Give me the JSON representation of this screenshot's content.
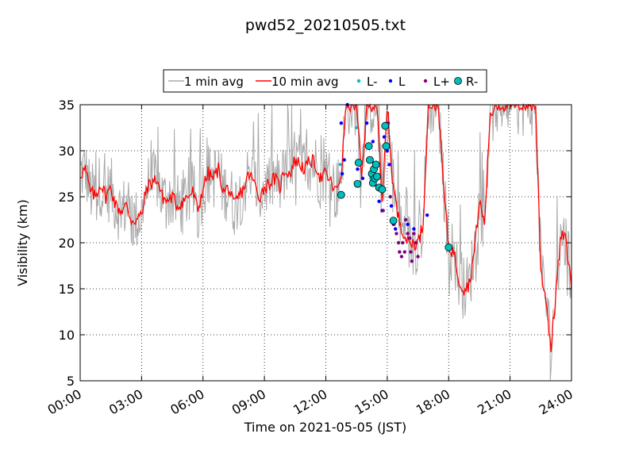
{
  "chart_data": {
    "type": "line",
    "title": "pwd52_20210505.txt",
    "xlabel": "Time on 2021-05-05 (JST)",
    "ylabel": "Visibility (km)",
    "xlim": [
      0,
      24
    ],
    "ylim": [
      5,
      35
    ],
    "x_tick_labels": [
      "00:00",
      "03:00",
      "06:00",
      "09:00",
      "12:00",
      "15:00",
      "18:00",
      "21:00",
      "24:00"
    ],
    "y_ticks": [
      5,
      10,
      15,
      20,
      25,
      30,
      35
    ],
    "grid": true,
    "legend_position": "top-center",
    "legend": [
      {
        "label": "1 min avg",
        "type": "line",
        "color": "#a9a9a9"
      },
      {
        "label": "10 min avg",
        "type": "line",
        "color": "#ff0000"
      },
      {
        "label": "L-",
        "type": "marker",
        "color": "#00bfbf",
        "size": "small"
      },
      {
        "label": "L",
        "type": "marker",
        "color": "#0000ff",
        "size": "small"
      },
      {
        "label": "L+",
        "type": "marker",
        "color": "#800080",
        "size": "small"
      },
      {
        "label": "R-",
        "type": "marker",
        "color": "#00bfbf",
        "size": "large"
      }
    ],
    "series": [
      {
        "name": "10 min avg",
        "color": "#ff0000",
        "x": [
          0,
          0.25,
          0.5,
          0.75,
          1,
          1.25,
          1.5,
          1.75,
          2,
          2.25,
          2.5,
          2.75,
          3,
          3.25,
          3.5,
          3.75,
          4,
          4.25,
          4.5,
          4.75,
          5,
          5.25,
          5.5,
          5.75,
          6,
          6.25,
          6.5,
          6.75,
          7,
          7.25,
          7.5,
          7.75,
          8,
          8.25,
          8.5,
          8.75,
          9,
          9.25,
          9.5,
          9.75,
          10,
          10.25,
          10.5,
          10.75,
          11,
          11.25,
          11.5,
          11.75,
          12,
          12.25,
          12.5,
          12.75,
          13,
          13.25,
          13.5,
          13.75,
          14,
          14.25,
          14.5,
          14.75,
          15,
          15.25,
          15.5,
          15.75,
          16,
          16.25,
          16.5,
          16.75,
          17,
          17.25,
          17.5,
          17.75,
          18,
          18.25,
          18.5,
          18.75,
          19,
          19.25,
          19.5,
          19.75,
          20,
          20.25,
          20.5,
          20.75,
          21,
          21.25,
          21.5,
          21.75,
          22,
          22.25,
          22.5,
          22.75,
          23,
          23.25,
          23.5,
          23.75,
          24
        ],
        "y": [
          27.5,
          28,
          25.5,
          25,
          26.5,
          25,
          26,
          24,
          23.5,
          24,
          22.5,
          22.5,
          23,
          26,
          26.5,
          27,
          25,
          24.5,
          25,
          24,
          24.5,
          25,
          25.5,
          23.5,
          26,
          27.5,
          27,
          28,
          25.5,
          26,
          24,
          25,
          26,
          27.5,
          26.5,
          25,
          26,
          26.5,
          27,
          26,
          28,
          27.5,
          29,
          28.5,
          28,
          29,
          28.5,
          27,
          27.5,
          26.5,
          25.5,
          27.5,
          35,
          35,
          35,
          27,
          35,
          35,
          35,
          24,
          35,
          27,
          23,
          21.5,
          20,
          20,
          20,
          22,
          35,
          35,
          35,
          26,
          19.5,
          19,
          16,
          15,
          15.5,
          19,
          24.5,
          22,
          33,
          35,
          35,
          35,
          35,
          35,
          35,
          35,
          35,
          35,
          17,
          14,
          8.5,
          15,
          21,
          20,
          15
        ]
      }
    ],
    "points": {
      "L-": {
        "color": "#00bfbf",
        "x": [
          12.7,
          13.5,
          14.2,
          14.55,
          15.35
        ],
        "y": [
          28.5,
          32.5,
          27.0,
          26.0,
          22.0
        ]
      },
      "L": {
        "color": "#0000ff",
        "x": [
          12.75,
          12.8,
          12.9,
          13.05,
          13.55,
          13.8,
          14.0,
          14.3,
          14.5,
          14.6,
          14.75,
          14.85,
          15.0,
          15.1,
          15.2,
          15.4,
          16.0,
          16.3,
          16.95
        ],
        "y": [
          33.0,
          27.5,
          29.0,
          35.0,
          28.0,
          27.0,
          33.0,
          31.0,
          26.0,
          24.5,
          23.5,
          31.5,
          30.0,
          28.5,
          24.0,
          21.5,
          22.0,
          21.5,
          23.0
        ]
      },
      "L+": {
        "color": "#800080",
        "x": [
          14.8,
          15.05,
          15.15,
          15.3,
          15.45,
          15.55,
          15.6,
          15.7,
          15.75,
          15.85,
          15.9,
          16.0,
          16.1,
          16.15,
          16.2,
          16.3,
          16.4,
          16.5
        ],
        "y": [
          23.5,
          33.0,
          25.0,
          22.0,
          21.0,
          20.0,
          19.0,
          18.5,
          20.0,
          19.0,
          22.5,
          21.0,
          20.5,
          19.0,
          18.0,
          21.0,
          20.0,
          18.5
        ]
      },
      "R-": {
        "color": "#00bfbf",
        "x": [
          12.75,
          13.55,
          13.6,
          14.1,
          14.15,
          14.25,
          14.3,
          14.35,
          14.4,
          14.45,
          14.5,
          14.6,
          14.75,
          14.9,
          14.95,
          15.3,
          18.0
        ],
        "y": [
          25.2,
          26.4,
          28.7,
          30.5,
          29.0,
          27.5,
          26.5,
          28.0,
          27.0,
          28.5,
          27.2,
          26.0,
          25.8,
          32.7,
          30.5,
          22.4,
          19.5
        ]
      }
    }
  }
}
